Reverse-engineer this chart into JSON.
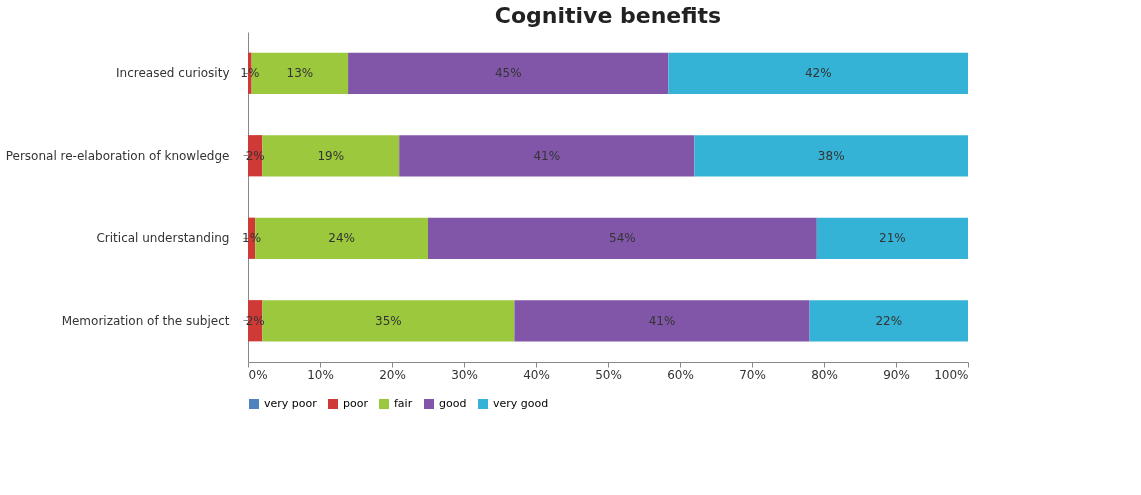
{
  "chart_data": {
    "type": "bar",
    "orientation": "horizontal",
    "stacked": true,
    "title": "Cognitive benefits",
    "categories": [
      "Increased curiosity",
      "Personal re-elaboration of knowledge",
      "Critical understanding",
      "Memorization of the subject"
    ],
    "series": [
      {
        "name": "very poor",
        "color": "#4f81bd",
        "values": [
          0,
          0,
          0,
          0
        ]
      },
      {
        "name": "poor",
        "color": "#d03a36",
        "values": [
          0.5,
          2,
          1,
          2
        ],
        "value_labels": [
          "1%",
          "2%",
          "1%",
          "2%"
        ]
      },
      {
        "name": "fair",
        "color": "#9bc83c",
        "values": [
          13.4,
          19,
          24,
          35
        ],
        "value_labels": [
          "13%",
          "19%",
          "24%",
          "35%"
        ]
      },
      {
        "name": "good",
        "color": "#8156a8",
        "values": [
          44.5,
          41,
          54,
          41
        ],
        "value_labels": [
          "45%",
          "41%",
          "54%",
          "41%"
        ]
      },
      {
        "name": "very good",
        "color": "#35b3d6",
        "values": [
          41.6,
          38,
          21,
          22
        ],
        "value_labels": [
          "42%",
          "38%",
          "21%",
          "22%"
        ]
      }
    ],
    "xlim": [
      0,
      100
    ],
    "xticks": [
      {
        "value": 0,
        "label": "0%"
      },
      {
        "value": 10,
        "label": "10%"
      },
      {
        "value": 20,
        "label": "20%"
      },
      {
        "value": 30,
        "label": "30%"
      },
      {
        "value": 40,
        "label": "40%"
      },
      {
        "value": 50,
        "label": "50%"
      },
      {
        "value": 60,
        "label": "60%"
      },
      {
        "value": 70,
        "label": "70%"
      },
      {
        "value": 80,
        "label": "80%"
      },
      {
        "value": 90,
        "label": "90%"
      },
      {
        "value": 100,
        "label": "100%"
      }
    ],
    "grid": false,
    "legend": "bottom"
  }
}
